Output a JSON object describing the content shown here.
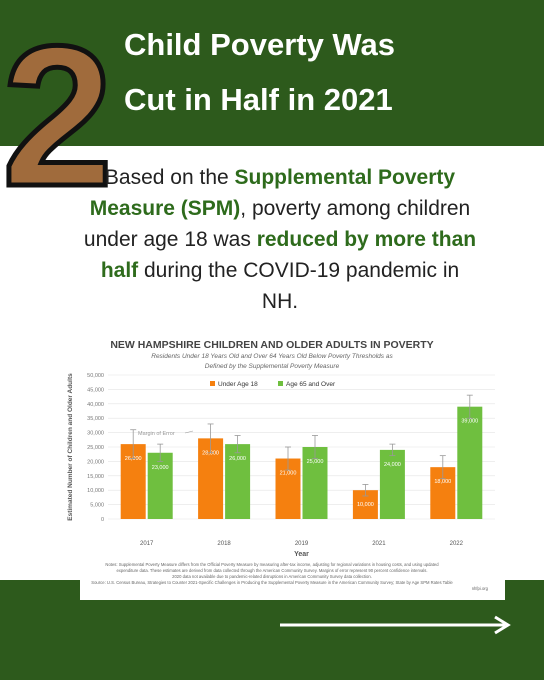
{
  "header": {
    "number": "2",
    "title_lines": [
      "Child Poverty Was",
      "Cut in Half in 2021"
    ]
  },
  "intro": [
    "Based on the ",
    "Supplemental Poverty Measure (SPM)",
    ", poverty among children under age 18 was ",
    "reduced by more than half",
    " during the COVID-19 pandemic in NH."
  ],
  "chart_data": {
    "type": "bar",
    "title": "NEW HAMPSHIRE CHILDREN AND OLDER ADULTS IN POVERTY",
    "subtitle_lines": [
      "Residents Under 18 Years Old and Over 64 Years Old Below Poverty Thresholds as",
      "Defined by the Supplemental Poverty Measure"
    ],
    "x_label": "Year",
    "y_label": "Estimated Number of Children and Older Adults",
    "annotation": "Margin of Error",
    "categories": [
      "2017",
      "2018",
      "2019",
      "2021",
      "2022"
    ],
    "series": [
      {
        "name": "Under Age 18",
        "color": "#f5800f",
        "values": [
          26000,
          28000,
          21000,
          10000,
          18000
        ],
        "value_labels": [
          "26,000",
          "28,000",
          "21,000",
          "10,000",
          "18,000"
        ],
        "errors": [
          5000,
          5000,
          4000,
          2000,
          4000
        ]
      },
      {
        "name": "Age 65 and Over",
        "color": "#6fbf3f",
        "values": [
          23000,
          26000,
          25000,
          24000,
          39000
        ],
        "value_labels": [
          "23,000",
          "26,000",
          "25,000",
          "24,000",
          "39,000"
        ],
        "errors": [
          3000,
          3000,
          4000,
          2000,
          4000
        ]
      }
    ],
    "ylim": [
      0,
      50000
    ],
    "yticks": [
      0,
      {
        "value": 5000,
        "label": "5,000"
      },
      {
        "value": 10000,
        "label": "10,000"
      },
      {
        "value": 15000,
        "label": "15,000"
      },
      {
        "value": 20000,
        "label": "20,000"
      },
      {
        "value": 25000,
        "label": "25,000"
      },
      {
        "value": 30000,
        "label": "30,000"
      },
      {
        "value": 35000,
        "label": "35,000"
      },
      {
        "value": 40000,
        "label": "40,000"
      },
      {
        "value": 45000,
        "label": "45,000"
      },
      {
        "value": 50000,
        "label": "50,000"
      }
    ],
    "grid": true,
    "legend": "top",
    "notes": [
      "Notes: Supplemental Poverty Measure differs from the Official Poverty Measure by measuring after-tax income, adjusting for regional variations in housing costs, and using updated",
      "expenditure data. These estimates are derived from data collected through the American Community Survey. Margins of error represent 90 percent confidence intervals.",
      "2020 data not available due to pandemic-related disruptions in American Community Survey data collection.",
      "Source: U.S. Census Bureau, Strategies to Counter 2021-Specific Challenges in Producing the Supplemental Poverty Measure in the American Community Survey; State by Age SPM Rates Table",
      "nhfpi.org"
    ]
  }
}
